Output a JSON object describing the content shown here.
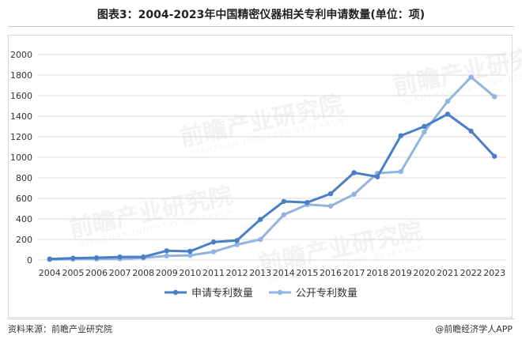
{
  "title": "图表3：2004-2023年中国精密仪器相关专利申请数量(单位：项)",
  "source": "资料来源：前瞻产业研究院",
  "brand": "@前瞻经济学人APP",
  "watermark": "前瞻产业研究院",
  "watermark_sub": "QIANZHAN INDUSTRY RESEARCH",
  "colors": {
    "series1": "#4a7fc6",
    "series2": "#92b4e0",
    "grid": "#d9d9d9"
  },
  "chart_data": {
    "type": "line",
    "x": [
      "2004",
      "2005",
      "2006",
      "2007",
      "2008",
      "2009",
      "2010",
      "2011",
      "2012",
      "2013",
      "2014",
      "2015",
      "2016",
      "2017",
      "2018",
      "2019",
      "2020",
      "2021",
      "2022",
      "2023"
    ],
    "ylim": [
      0,
      2000
    ],
    "yticks": [
      0,
      200,
      400,
      600,
      800,
      1000,
      1200,
      1400,
      1600,
      1800,
      2000
    ],
    "grid": true,
    "legend": "bottom",
    "series": [
      {
        "name": "申请专利数量",
        "values": [
          10,
          18,
          22,
          30,
          30,
          90,
          85,
          175,
          190,
          395,
          570,
          560,
          645,
          850,
          810,
          1210,
          1300,
          1420,
          1255,
          1010
        ]
      },
      {
        "name": "公开专利数量",
        "values": [
          5,
          8,
          10,
          12,
          20,
          40,
          45,
          80,
          150,
          200,
          440,
          540,
          525,
          640,
          845,
          860,
          1245,
          1545,
          1780,
          1590
        ]
      }
    ]
  }
}
